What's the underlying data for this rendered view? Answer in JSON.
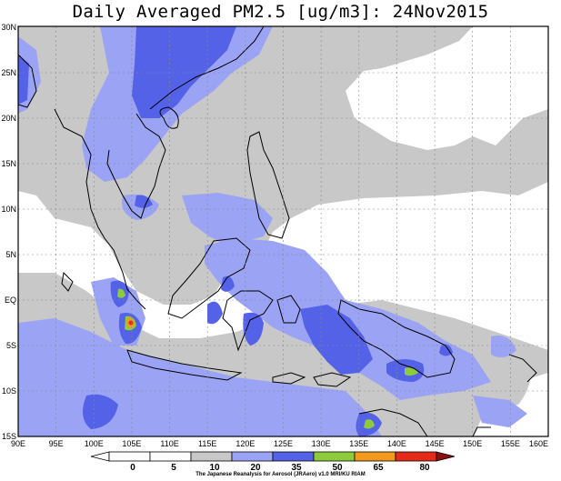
{
  "title": "Daily Averaged PM2.5 [ug/m3]: 24Nov2015",
  "credit": "The Japanese Reanalysis for Aerosol (JRAero) v1.0 MRI/KU RIAM",
  "lat_labels": [
    "30N",
    "25N",
    "20N",
    "15N",
    "10N",
    "5N",
    "EQ",
    "5S",
    "10S",
    "15S"
  ],
  "lon_labels": [
    "90E",
    "95E",
    "100E",
    "105E",
    "110E",
    "115E",
    "120E",
    "125E",
    "130E",
    "135E",
    "140E",
    "145E",
    "150E",
    "155E",
    "160E"
  ],
  "colorbar": {
    "labels": [
      "0",
      "5",
      "10",
      "20",
      "35",
      "50",
      "65",
      "80"
    ],
    "colors": [
      "#ffffff",
      "#ffffff",
      "#c8c8c8",
      "#9ba3f5",
      "#5462e8",
      "#8ecb3a",
      "#f39a1e",
      "#e52a1a",
      "#8a0f0f"
    ]
  },
  "colors": {
    "grey_10_20": "#c8c8c8",
    "lightblue_20_35": "#9ba3f5",
    "blue_35_50": "#5462e8",
    "green_50_65": "#8ecb3a",
    "orange_65_80": "#f39a1e",
    "red_80plus": "#e52a1a",
    "coast": "#000000"
  }
}
